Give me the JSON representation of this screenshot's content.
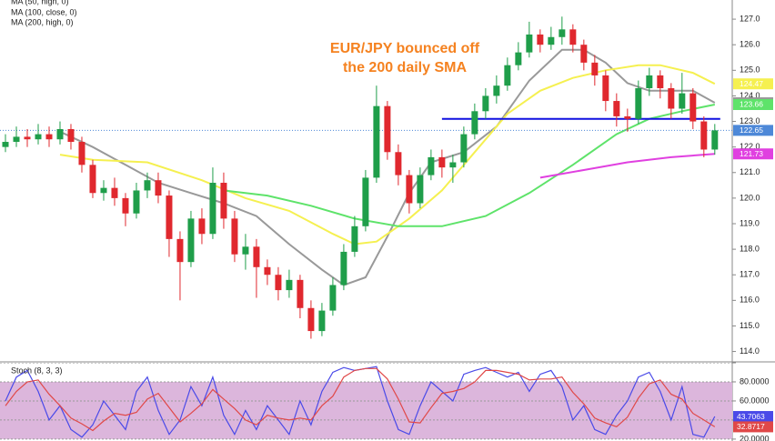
{
  "chart_data": {
    "type": "candlestick",
    "annotation": [
      "EUR/JPY bounced off",
      "the 200 daily SMA"
    ],
    "annotation_color": "#f58220",
    "xlim": [
      -0.5,
      66.6
    ],
    "ylim": [
      113.7,
      127.75
    ],
    "yticks": [
      {
        "value": 114,
        "label": "114.0"
      },
      {
        "value": 115,
        "label": "115.0"
      },
      {
        "value": 116,
        "label": "116.0"
      },
      {
        "value": 117,
        "label": "117.0"
      },
      {
        "value": 118,
        "label": "118.0"
      },
      {
        "value": 119,
        "label": "119.0"
      },
      {
        "value": 120,
        "label": "120.0"
      },
      {
        "value": 121,
        "label": "121.0"
      },
      {
        "value": 122,
        "label": "122.0"
      },
      {
        "value": 123,
        "label": "123.0"
      },
      {
        "value": 124,
        "label": "124.0"
      },
      {
        "value": 125,
        "label": "125.0"
      },
      {
        "value": 126,
        "label": "126.0"
      },
      {
        "value": 127,
        "label": "127.0"
      }
    ],
    "up_color": "#1f9e4a",
    "down_color": "#e0282e",
    "last_color": "#4d88d8",
    "candles": {
      "open": [
        122.0,
        122.2,
        122.4,
        122.3,
        122.5,
        122.3,
        122.7,
        122.2,
        121.3,
        120.2,
        120.4,
        120.0,
        119.4,
        120.3,
        120.7,
        120.1,
        118.4,
        117.5,
        119.2,
        118.6,
        120.6,
        119.2,
        117.8,
        118.1,
        117.3,
        117.0,
        116.4,
        116.8,
        115.7,
        114.8,
        115.6,
        116.6,
        117.9,
        118.9,
        120.8,
        123.6,
        121.8,
        120.9,
        119.8,
        120.9,
        121.6,
        121.2,
        121.4,
        122.5,
        123.4,
        124.0,
        124.4,
        125.2,
        125.7,
        126.4,
        126.0,
        126.3,
        126.6,
        126.0,
        125.3,
        124.8,
        123.8,
        123.2,
        123.1,
        124.3,
        124.8,
        124.3,
        123.5,
        124.1,
        123.0,
        121.9
      ],
      "high": [
        122.5,
        122.8,
        122.7,
        122.9,
        122.8,
        123.0,
        122.9,
        122.4,
        121.5,
        120.7,
        120.8,
        120.2,
        120.6,
        121.0,
        121.0,
        120.3,
        118.7,
        119.5,
        119.6,
        121.2,
        121.0,
        119.5,
        118.6,
        118.4,
        117.6,
        117.3,
        117.2,
        117.0,
        116.0,
        115.9,
        116.9,
        118.2,
        119.3,
        121.1,
        124.4,
        123.8,
        122.1,
        121.1,
        121.2,
        121.9,
        121.9,
        121.7,
        122.8,
        123.7,
        124.3,
        124.8,
        125.5,
        126.1,
        126.9,
        126.6,
        126.7,
        127.1,
        126.8,
        126.2,
        125.6,
        125.0,
        124.1,
        123.5,
        124.6,
        125.1,
        125.0,
        124.5,
        124.9,
        124.3,
        123.2,
        122.9
      ],
      "low": [
        121.8,
        122.0,
        122.0,
        122.1,
        122.0,
        122.1,
        121.9,
        121.0,
        120.0,
        119.9,
        119.7,
        118.9,
        119.2,
        120.0,
        119.8,
        117.7,
        116.0,
        117.3,
        118.2,
        118.4,
        118.8,
        117.5,
        117.2,
        116.1,
        116.6,
        116.0,
        116.1,
        115.3,
        114.5,
        114.6,
        115.4,
        116.4,
        117.7,
        118.7,
        120.6,
        121.5,
        120.5,
        119.4,
        119.6,
        120.7,
        120.8,
        120.6,
        121.2,
        122.3,
        123.1,
        123.7,
        124.2,
        125.0,
        125.5,
        125.7,
        125.8,
        126.0,
        125.7,
        125.0,
        124.4,
        123.4,
        122.8,
        122.6,
        122.9,
        124.0,
        123.9,
        123.1,
        123.3,
        122.7,
        121.6,
        121.7
      ],
      "close": [
        122.2,
        122.4,
        122.3,
        122.5,
        122.3,
        122.7,
        122.2,
        121.3,
        120.2,
        120.4,
        120.0,
        119.4,
        120.3,
        120.7,
        120.1,
        118.4,
        117.5,
        119.2,
        118.6,
        120.6,
        119.2,
        117.8,
        118.1,
        117.3,
        117.0,
        116.4,
        116.8,
        115.7,
        114.8,
        115.6,
        116.6,
        117.9,
        118.9,
        120.8,
        123.6,
        121.8,
        120.9,
        119.8,
        120.9,
        121.6,
        121.2,
        121.4,
        122.5,
        123.4,
        124.0,
        124.4,
        125.2,
        125.7,
        126.4,
        126.0,
        126.3,
        126.6,
        126.0,
        125.3,
        124.8,
        123.8,
        123.2,
        123.1,
        124.3,
        124.8,
        124.3,
        123.5,
        124.1,
        123.0,
        121.9,
        122.65
      ]
    },
    "series": [
      {
        "color": "#999999",
        "x": [
          5,
          8,
          11,
          14,
          17,
          20,
          23,
          26,
          29,
          31,
          33,
          35,
          37,
          39,
          42,
          45,
          48,
          51,
          53,
          55,
          57,
          59,
          61,
          63,
          65
        ],
        "values": [
          122.6,
          122.0,
          121.3,
          120.6,
          120.2,
          119.8,
          119.3,
          118.2,
          117.2,
          116.6,
          116.9,
          118.5,
          120.2,
          121.4,
          121.8,
          122.8,
          124.6,
          125.8,
          125.8,
          125.3,
          124.5,
          124.2,
          124.2,
          124.2,
          123.73
        ]
      },
      {
        "name": "MA (50, high, 0)",
        "color": "#f5f050",
        "x": [
          5,
          8,
          13,
          18,
          22,
          26,
          30,
          32,
          34,
          37,
          40,
          43,
          46,
          49,
          52,
          55,
          58,
          60,
          63,
          65
        ],
        "values": [
          121.7,
          121.5,
          121.4,
          120.7,
          120.0,
          119.5,
          118.6,
          118.2,
          118.3,
          119.2,
          120.3,
          121.8,
          123.3,
          124.2,
          124.7,
          125.0,
          125.2,
          125.2,
          124.9,
          124.47
        ]
      },
      {
        "name": "MA (100, close, 0)",
        "color": "#5ee36a",
        "x": [
          20,
          24,
          28,
          32,
          36,
          40,
          44,
          48,
          52,
          56,
          59,
          62,
          65
        ],
        "values": [
          120.3,
          120.1,
          119.7,
          119.2,
          118.9,
          118.9,
          119.3,
          120.2,
          121.3,
          122.5,
          123.1,
          123.4,
          123.66
        ]
      },
      {
        "name": "MA (200, high, 0)",
        "color": "#e040e0",
        "x": [
          49,
          53,
          57,
          61,
          65
        ],
        "values": [
          120.8,
          121.1,
          121.4,
          121.6,
          121.73
        ]
      }
    ],
    "support": {
      "value": 123.1,
      "start": 40,
      "color": "#1010e0"
    },
    "stoch": {
      "title": "Stoch (8, 3, 3)",
      "ylim": [
        18,
        100
      ],
      "yticks": [
        {
          "value": 100,
          "label": "100.0000"
        },
        {
          "value": 80,
          "label": "80.0000"
        },
        {
          "value": 60,
          "label": "60.0000"
        },
        {
          "value": 40,
          "label": "40.0000"
        },
        {
          "value": 20,
          "label": "20.0000"
        }
      ],
      "band": [
        20,
        80
      ],
      "band_color": "#dcb6dc",
      "series": [
        {
          "color": "#4a4ae8",
          "values": [
            60,
            85,
            92,
            70,
            40,
            55,
            30,
            22,
            35,
            60,
            45,
            30,
            70,
            85,
            50,
            25,
            40,
            75,
            55,
            85,
            45,
            25,
            50,
            30,
            55,
            40,
            25,
            60,
            35,
            70,
            90,
            95,
            92,
            94,
            96,
            60,
            30,
            25,
            55,
            80,
            70,
            60,
            88,
            92,
            95,
            90,
            85,
            90,
            70,
            88,
            92,
            75,
            40,
            55,
            30,
            25,
            45,
            60,
            85,
            90,
            70,
            40,
            75,
            25,
            22,
            43.7063
          ]
        },
        {
          "color": "#e04848",
          "values": [
            55,
            70,
            80,
            82,
            67,
            55,
            42,
            36,
            29,
            39,
            47,
            45,
            48,
            62,
            68,
            53,
            38,
            47,
            57,
            72,
            62,
            52,
            40,
            35,
            45,
            42,
            40,
            42,
            40,
            55,
            65,
            85,
            92,
            94,
            94,
            83,
            62,
            38,
            37,
            53,
            68,
            70,
            73,
            80,
            92,
            92,
            90,
            88,
            82,
            83,
            83,
            85,
            69,
            57,
            42,
            37,
            33,
            43,
            63,
            78,
            82,
            67,
            62,
            47,
            40,
            32.8717
          ]
        }
      ]
    }
  }
}
